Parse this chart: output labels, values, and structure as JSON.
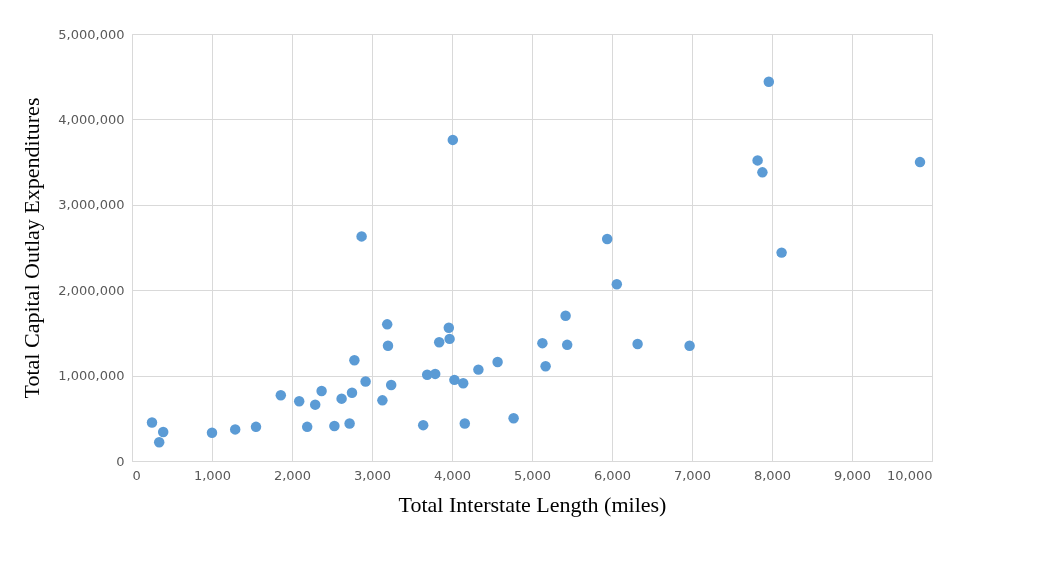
{
  "chart_data": {
    "type": "scatter",
    "xlabel": "Total Interstate Length (miles)",
    "ylabel": "Total Capital Outlay Expenditures",
    "x": [
      250,
      340,
      390,
      1000,
      1290,
      1550,
      1860,
      2090,
      2190,
      2290,
      2370,
      2530,
      2620,
      2720,
      2750,
      2780,
      2870,
      2920,
      3130,
      3190,
      3200,
      3240,
      3640,
      3690,
      3790,
      3840,
      3960,
      3970,
      4010,
      4030,
      4140,
      4160,
      4330,
      4570,
      4770,
      5130,
      5170,
      5420,
      5440,
      5940,
      6060,
      6320,
      6970,
      7820,
      7880,
      7960,
      8120,
      9850
    ],
    "series": [
      {
        "color": "#5b9bd5",
        "values": [
          450000,
          220000,
          340000,
          330000,
          370000,
          400000,
          770000,
          700000,
          400000,
          660000,
          820000,
          410000,
          730000,
          440000,
          800000,
          1180000,
          2630000,
          930000,
          710000,
          1600000,
          1350000,
          890000,
          420000,
          1010000,
          1020000,
          1390000,
          1560000,
          1430000,
          3760000,
          950000,
          910000,
          440000,
          1070000,
          1160000,
          500000,
          1380000,
          1110000,
          1700000,
          1360000,
          2600000,
          2070000,
          1370000,
          1350000,
          3520000,
          3380000,
          4440000,
          2440000,
          3500000
        ]
      }
    ],
    "xlim": [
      0,
      10000
    ],
    "xticks": [
      {
        "value": 0,
        "label": "0"
      },
      {
        "value": 1000,
        "label": "1,000"
      },
      {
        "value": 2000,
        "label": "2,000"
      },
      {
        "value": 3000,
        "label": "3,000"
      },
      {
        "value": 4000,
        "label": "4,000"
      },
      {
        "value": 5000,
        "label": "5,000"
      },
      {
        "value": 6000,
        "label": "6,000"
      },
      {
        "value": 7000,
        "label": "7,000"
      },
      {
        "value": 8000,
        "label": "8,000"
      },
      {
        "value": 9000,
        "label": "9,000"
      },
      {
        "value": 10000,
        "label": "10,000"
      }
    ],
    "ylim": [
      0,
      5000000
    ],
    "yticks": [
      {
        "value": 0,
        "label": "0"
      },
      {
        "value": 1000000,
        "label": "1,000,000"
      },
      {
        "value": 2000000,
        "label": "2,000,000"
      },
      {
        "value": 3000000,
        "label": "3,000,000"
      },
      {
        "value": 4000000,
        "label": "4,000,000"
      },
      {
        "value": 5000000,
        "label": "5,000,000"
      }
    ],
    "grid": true,
    "marker": "circle"
  }
}
